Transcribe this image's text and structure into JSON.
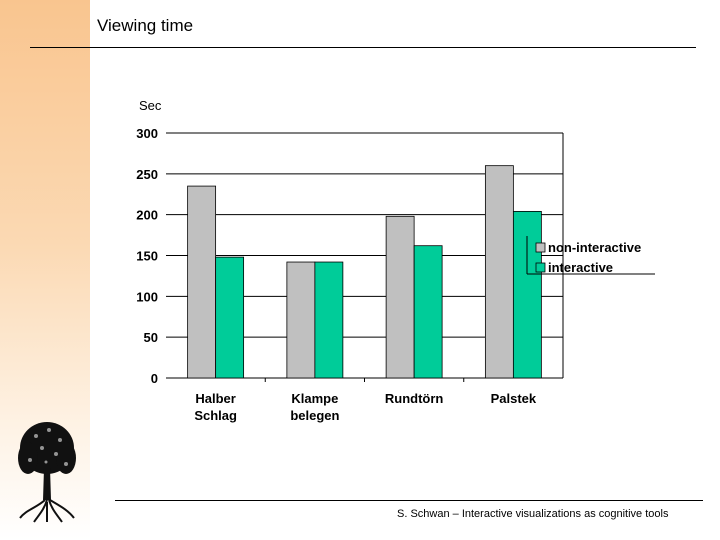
{
  "slide": {
    "title": "Viewing time",
    "footer": "S. Schwan – Interactive visualizations as cognitive tools"
  },
  "logo": {
    "icon": "tree-icon"
  },
  "chart_data": {
    "type": "bar",
    "unit_label": "Sec",
    "categories": [
      [
        "Halber",
        "Schlag"
      ],
      [
        "Klampe",
        "belegen"
      ],
      [
        "Rundtörn"
      ],
      [
        "Palstek"
      ]
    ],
    "series": [
      {
        "name": "non-interactive",
        "color": "#c0c0c0",
        "values": [
          235,
          142,
          198,
          260
        ]
      },
      {
        "name": "interactive",
        "color": "#00cc99",
        "values": [
          148,
          142,
          162,
          204
        ]
      }
    ],
    "ylim": [
      0,
      300
    ],
    "yticks": [
      0,
      50,
      100,
      150,
      200,
      250,
      300
    ],
    "grid": true,
    "legend": "right"
  }
}
